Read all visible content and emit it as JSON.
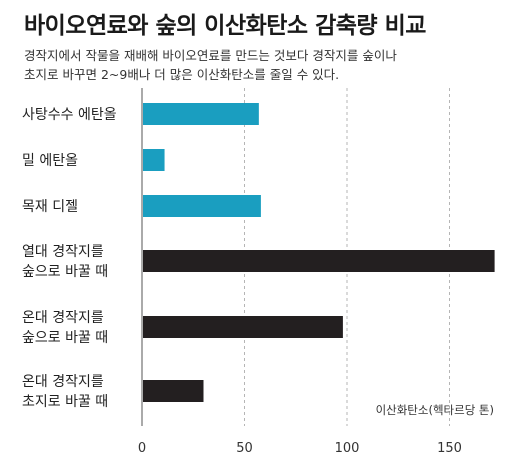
{
  "chart_data": {
    "type": "bar",
    "orientation": "horizontal",
    "title": "바이오연료와 숲의 이산화탄소 감축량 비교",
    "subtitle_lines": [
      "경작지에서 작물을 재배해 바이오연료를 만드는 것보다 경작지를 숲이나",
      "초지로 바꾸면 2~9배나 더 많은 이산화탄소를 줄일 수 있다."
    ],
    "categories": [
      [
        "사탕수수 에탄올"
      ],
      [
        "밀 에탄올"
      ],
      [
        "목재 디젤"
      ],
      [
        "열대 경작지를",
        "숲으로 바꿀 때"
      ],
      [
        "온대 경작지를",
        "숲으로 바꿀 때"
      ],
      [
        "온대 경작지를",
        "초지로 바꿀 때"
      ]
    ],
    "values": [
      57,
      11,
      58,
      172,
      98,
      30
    ],
    "colors": [
      "#1a9ec0",
      "#1a9ec0",
      "#1a9ec0",
      "#231f20",
      "#231f20",
      "#231f20"
    ],
    "xlabel": "이산화탄소(헥타르당 톤)",
    "xlim": [
      0,
      175
    ],
    "xticks": [
      0,
      50,
      100,
      150
    ],
    "grid": "vertical-dashed"
  }
}
